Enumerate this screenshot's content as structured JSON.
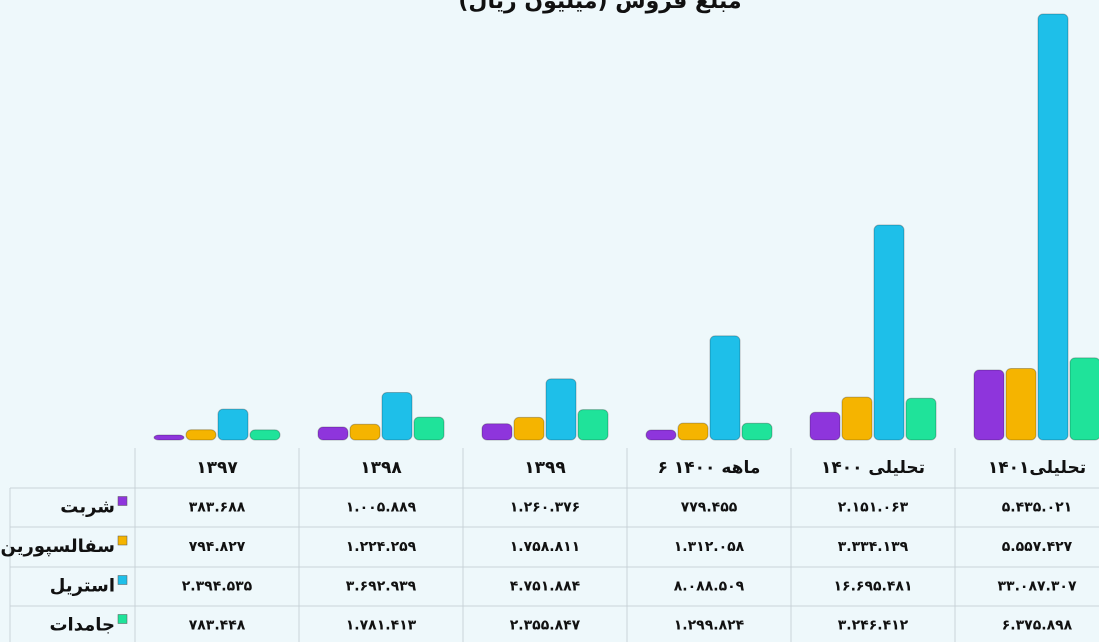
{
  "chart_data": {
    "type": "bar",
    "title": "مبلغ فروش (میلیون ریال)",
    "categories": [
      "۱۳۹۷",
      "۱۳۹۸",
      "۱۳۹۹",
      "۶ ماهه ۱۴۰۰",
      "تحلیلی ۱۴۰۰",
      "تحلیلی۱۴۰۱"
    ],
    "series": [
      {
        "name": "شربت",
        "color": "#8e35dc",
        "values": [
          383688,
          1005889,
          1260376,
          779455,
          2151063,
          5435021
        ],
        "value_labels": [
          "۳۸۳.۶۸۸",
          "۱.۰۰۵.۸۸۹",
          "۱.۲۶۰.۳۷۶",
          "۷۷۹.۴۵۵",
          "۲.۱۵۱.۰۶۳",
          "۵.۴۳۵.۰۲۱"
        ]
      },
      {
        "name": "سفالسپورین",
        "color": "#f5b400",
        "values": [
          794827,
          1224259,
          1758811,
          1312058,
          3334139,
          5557427
        ],
        "value_labels": [
          "۷۹۴.۸۲۷",
          "۱.۲۲۴.۲۵۹",
          "۱.۷۵۸.۸۱۱",
          "۱.۳۱۲.۰۵۸",
          "۳.۳۳۴.۱۳۹",
          "۵.۵۵۷.۴۲۷"
        ]
      },
      {
        "name": "استریل",
        "color": "#1ebfe9",
        "values": [
          2394535,
          3692939,
          4751884,
          8088509,
          16695481,
          33087307
        ],
        "value_labels": [
          "۲.۳۹۴.۵۳۵",
          "۳.۶۹۲.۹۳۹",
          "۴.۷۵۱.۸۸۴",
          "۸.۰۸۸.۵۰۹",
          "۱۶.۶۹۵.۴۸۱",
          "۳۳.۰۸۷.۳۰۷"
        ]
      },
      {
        "name": "جامدات",
        "color": "#1fe39a",
        "values": [
          783448,
          1781413,
          2355847,
          1299824,
          3246412,
          6375898
        ],
        "value_labels": [
          "۷۸۳.۴۴۸",
          "۱.۷۸۱.۴۱۳",
          "۲.۳۵۵.۸۴۷",
          "۱.۲۹۹.۸۲۴",
          "۳.۲۴۶.۴۱۲",
          "۶.۳۷۵.۸۹۸"
        ]
      }
    ]
  }
}
